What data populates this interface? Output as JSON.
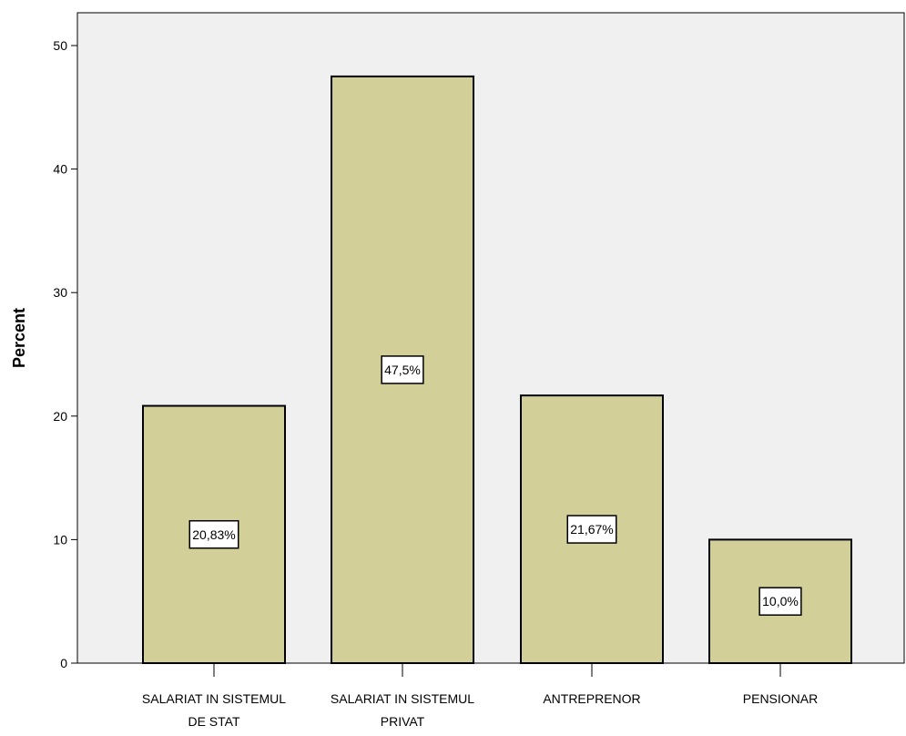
{
  "chart_data": {
    "type": "bar",
    "title": "",
    "xlabel": "",
    "ylabel": "Percent",
    "ylim": [
      0,
      53
    ],
    "yticks": [
      0,
      10,
      20,
      30,
      40,
      50
    ],
    "grid": false,
    "legend": "none",
    "categories": [
      [
        "SALARIAT IN SISTEMUL",
        "DE STAT"
      ],
      [
        "SALARIAT IN SISTEMUL",
        "PRIVAT"
      ],
      [
        "ANTREPRENOR"
      ],
      [
        "PENSIONAR"
      ]
    ],
    "values": [
      20.83,
      47.5,
      21.67,
      10.0
    ],
    "data_labels": [
      "20,83%",
      "47,5%",
      "21,67%",
      "10,0%"
    ],
    "colors": {
      "plot_background": "#f0f0f0",
      "bar_fill": "#d3cf98",
      "bar_stroke": "#000000",
      "label_background": "#ffffff"
    }
  }
}
